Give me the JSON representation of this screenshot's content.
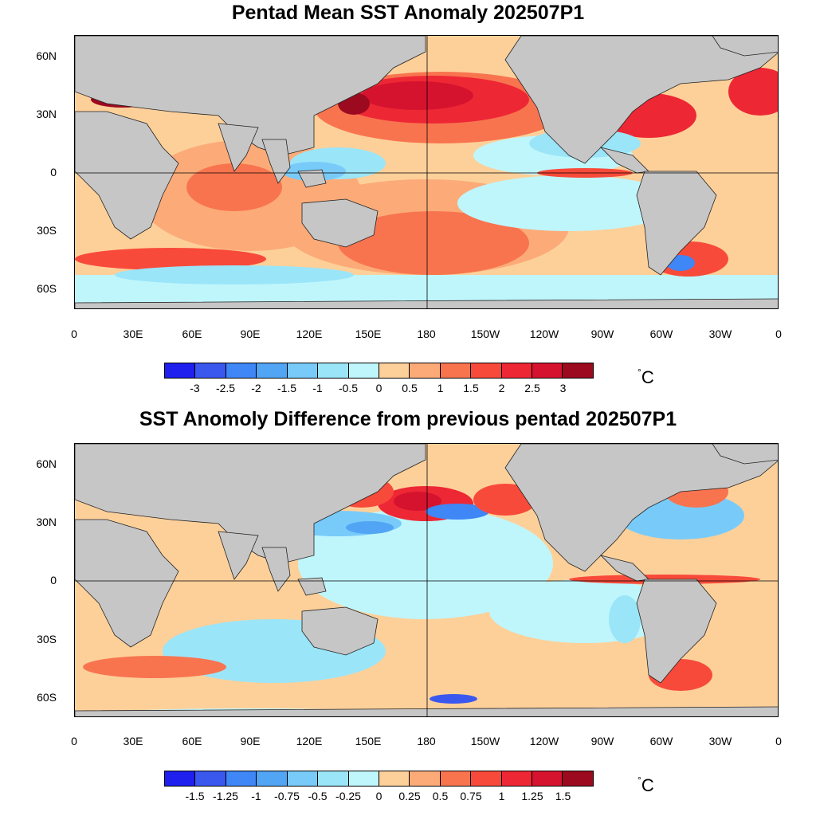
{
  "maps": [
    {
      "id": "top",
      "title": "Pentad Mean SST Anomaly 202507P1",
      "unit_degree": "°",
      "unit_letter": "C",
      "colorbar": {
        "colors": [
          "#1f1fee",
          "#3b58ee",
          "#3f86f6",
          "#52a5f5",
          "#78cbf9",
          "#9be5f9",
          "#bff6fc",
          "#fdd09a",
          "#fcab78",
          "#f8744f",
          "#f84a3a",
          "#ee2735",
          "#d6132e",
          "#9c0a20"
        ],
        "labels": [
          "-3",
          "-2.5",
          "-2",
          "-1.5",
          "-1",
          "-0.5",
          "0",
          "0.5",
          "1",
          "1.5",
          "2",
          "2.5",
          "3"
        ]
      }
    },
    {
      "id": "bottom",
      "title": "SST Anomoly Difference from previous pentad 202507P1",
      "unit_degree": "°",
      "unit_letter": "C",
      "colorbar": {
        "colors": [
          "#1f1fee",
          "#3b58ee",
          "#3f86f6",
          "#52a5f5",
          "#78cbf9",
          "#9be5f9",
          "#bff6fc",
          "#fdd09a",
          "#fcab78",
          "#f8744f",
          "#f84a3a",
          "#ee2735",
          "#d6132e",
          "#9c0a20"
        ],
        "labels": [
          "-1.5",
          "-1.25",
          "-1",
          "-0.75",
          "-0.5",
          "-0.25",
          "0",
          "0.25",
          "0.5",
          "0.75",
          "1",
          "1.25",
          "1.5"
        ]
      }
    }
  ],
  "x_axis_labels": [
    "0",
    "30E",
    "60E",
    "90E",
    "120E",
    "150E",
    "180",
    "150W",
    "120W",
    "90W",
    "60W",
    "30W",
    "0"
  ],
  "y_axis_labels": [
    "60N",
    "30N",
    "0",
    "30S",
    "60S"
  ],
  "land_color": "#c6c6c6"
}
